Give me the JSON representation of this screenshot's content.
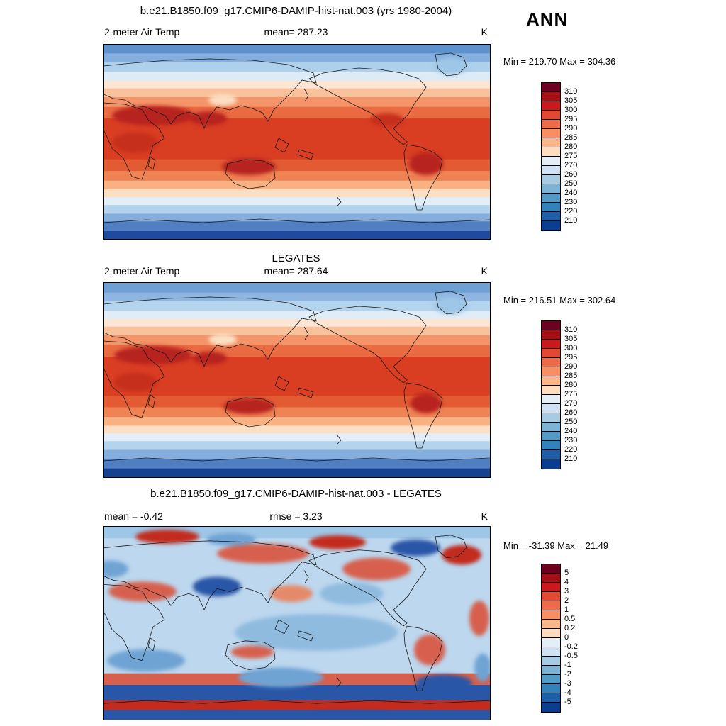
{
  "header": {
    "title": "b.e21.B1850.f09_g17.CMIP6-DAMIP-hist-nat.003 (yrs 1980-2004)",
    "season": "ANN"
  },
  "obs_label": "LEGATES",
  "diff_header": {
    "title": "b.e21.B1850.f09_g17.CMIP6-DAMIP-hist-nat.003 - LEGATES"
  },
  "chart_data": {
    "type": "heatmap",
    "panels": [
      {
        "name": "model",
        "variable": "2-meter Air Temp",
        "mean": "mean= 287.23",
        "units": "K",
        "range": "Min = 219.70 Max = 304.36",
        "stats": {
          "mean": 287.23,
          "min": 219.7,
          "max": 304.36
        },
        "colorbar": {
          "ticks": [
            "310",
            "305",
            "300",
            "295",
            "290",
            "285",
            "280",
            "275",
            "270",
            "260",
            "250",
            "240",
            "230",
            "220",
            "210"
          ],
          "colors": [
            "#6e011f",
            "#a50f15",
            "#cb181d",
            "#e24932",
            "#ef6b48",
            "#f78f63",
            "#fbb58b",
            "#fddcc0",
            "#e4eef7",
            "#cfe1f2",
            "#a6cbe3",
            "#7db3d5",
            "#539bc7",
            "#3182bd",
            "#1c5fa8",
            "#0b3d91"
          ]
        },
        "field": {
          "bands": [
            [
              0.045,
              "#5e92cc"
            ],
            [
              0.045,
              "#84aedd"
            ],
            [
              0.05,
              "#aed0ea"
            ],
            [
              0.045,
              "#dcebf6"
            ],
            [
              0.04,
              "#fbe6d5"
            ],
            [
              0.045,
              "#f9c29c"
            ],
            [
              0.05,
              "#f59468"
            ],
            [
              0.06,
              "#ea6a42"
            ],
            [
              0.21,
              "#d93d22"
            ],
            [
              0.06,
              "#e35b33"
            ],
            [
              0.05,
              "#ef8354"
            ],
            [
              0.045,
              "#f7b183"
            ],
            [
              0.04,
              "#fbdfc4"
            ],
            [
              0.04,
              "#e4eef8"
            ],
            [
              0.045,
              "#b4d3ec"
            ],
            [
              0.04,
              "#84aedd"
            ],
            [
              0.05,
              "#4f7fc0"
            ],
            [
              0.06,
              "#1f4a9e"
            ]
          ],
          "blobs": [
            [
              70,
              100,
              58,
              14,
              "#b7231f"
            ],
            [
              148,
              104,
              26,
              10,
              "#b7231f"
            ],
            [
              205,
              172,
              38,
              12,
              "#b7231f"
            ],
            [
              455,
              168,
              24,
              16,
              "#b7231f"
            ],
            [
              45,
              138,
              32,
              14,
              "#c52f1c"
            ],
            [
              400,
              106,
              24,
              9,
              "#c52f1c"
            ],
            [
              168,
              78,
              20,
              8,
              "#fbdfc4"
            ],
            [
              490,
              30,
              24,
              12,
              "#9ec6e6"
            ]
          ]
        }
      },
      {
        "name": "obs",
        "variable": "2-meter Air Temp",
        "mean": "mean= 287.64",
        "units": "K",
        "range": "Min = 216.51 Max = 302.64",
        "stats": {
          "mean": 287.64,
          "min": 216.51,
          "max": 302.64
        },
        "colorbar": {
          "ticks": [
            "310",
            "305",
            "300",
            "295",
            "290",
            "285",
            "280",
            "275",
            "270",
            "260",
            "250",
            "240",
            "230",
            "220",
            "210"
          ],
          "colors": [
            "#6e011f",
            "#a50f15",
            "#cb181d",
            "#e24932",
            "#ef6b48",
            "#f78f63",
            "#fbb58b",
            "#fddcc0",
            "#e4eef7",
            "#cfe1f2",
            "#a6cbe3",
            "#7db3d5",
            "#539bc7",
            "#3182bd",
            "#1c5fa8",
            "#0b3d91"
          ]
        },
        "field": {
          "bands": [
            [
              0.05,
              "#6fa0d4"
            ],
            [
              0.045,
              "#8fb6e0"
            ],
            [
              0.05,
              "#b4d3ec"
            ],
            [
              0.04,
              "#e0edf7"
            ],
            [
              0.04,
              "#fbe6d5"
            ],
            [
              0.045,
              "#f9c29c"
            ],
            [
              0.05,
              "#f59468"
            ],
            [
              0.06,
              "#ea6a42"
            ],
            [
              0.2,
              "#d93d22"
            ],
            [
              0.06,
              "#e35b33"
            ],
            [
              0.05,
              "#ef8354"
            ],
            [
              0.045,
              "#f7b183"
            ],
            [
              0.04,
              "#fbdfc4"
            ],
            [
              0.04,
              "#e4eef8"
            ],
            [
              0.045,
              "#b4d3ec"
            ],
            [
              0.045,
              "#84aedd"
            ],
            [
              0.05,
              "#4f7fc0"
            ],
            [
              0.06,
              "#16418f"
            ]
          ],
          "blobs": [
            [
              70,
              102,
              55,
              13,
              "#b7231f"
            ],
            [
              150,
              106,
              24,
              9,
              "#b7231f"
            ],
            [
              205,
              174,
              36,
              11,
              "#b7231f"
            ],
            [
              455,
              170,
              22,
              14,
              "#b7231f"
            ],
            [
              45,
              140,
              30,
              13,
              "#c52f1c"
            ],
            [
              168,
              80,
              20,
              8,
              "#fbdfc4"
            ],
            [
              490,
              32,
              24,
              12,
              "#9ec6e6"
            ]
          ]
        }
      },
      {
        "name": "difference",
        "mean": "mean =  -0.42",
        "rmse": "rmse =  3.23",
        "units": "K",
        "range": "Min = -31.39 Max =  21.49",
        "stats": {
          "mean": -0.42,
          "rmse": 3.23,
          "min": -31.39,
          "max": 21.49
        },
        "colorbar": {
          "ticks": [
            "5",
            "4",
            "3",
            "2",
            "1",
            "0.5",
            "0.2",
            "0",
            "-0.2",
            "-0.5",
            "-1",
            "-2",
            "-3",
            "-4",
            "-5"
          ],
          "colors": [
            "#6e011f",
            "#a50f15",
            "#cb181d",
            "#e24932",
            "#ef6b48",
            "#f78f63",
            "#fbb58b",
            "#fddcc0",
            "#e4eef7",
            "#cfe1f2",
            "#a6cbe3",
            "#7db3d5",
            "#539bc7",
            "#3182bd",
            "#1c5fa8",
            "#0b3d91"
          ]
        },
        "field": {
          "bands": [
            [
              0.06,
              "#9ec6e6"
            ],
            [
              0.7,
              "#bcd7ee"
            ],
            [
              0.06,
              "#d6604d"
            ],
            [
              0.08,
              "#2a56a8"
            ],
            [
              0.05,
              "#c22b1e"
            ],
            [
              0.05,
              "#2a56a8"
            ]
          ],
          "blobs": [
            [
              55,
              92,
              48,
              14,
              "#d6604d"
            ],
            [
              225,
              38,
              65,
              14,
              "#d6604d"
            ],
            [
              330,
              22,
              40,
              10,
              "#c22b1e"
            ],
            [
              385,
              60,
              48,
              16,
              "#d6604d"
            ],
            [
              505,
              40,
              28,
              14,
              "#c22b1e"
            ],
            [
              460,
              175,
              22,
              22,
              "#d6604d"
            ],
            [
              210,
              178,
              30,
              9,
              "#d6604d"
            ],
            [
              530,
              130,
              14,
              25,
              "#d6604d"
            ],
            [
              90,
              14,
              45,
              10,
              "#c22b1e"
            ],
            [
              160,
              85,
              34,
              14,
              "#2a56a8"
            ],
            [
              440,
              30,
              35,
              12,
              "#2a56a8"
            ],
            [
              180,
              18,
              35,
              9,
              "#6fa3d4"
            ],
            [
              300,
              150,
              115,
              26,
              "#8fbbde"
            ],
            [
              60,
              190,
              55,
              16,
              "#6fa3d4"
            ],
            [
              480,
              222,
              40,
              12,
              "#2a56a8"
            ],
            [
              250,
              214,
              60,
              14,
              "#6fa3d4"
            ],
            [
              350,
              95,
              45,
              16,
              "#8fbbde"
            ],
            [
              10,
              60,
              25,
              12,
              "#6fa3d4"
            ],
            [
              150,
              270,
              40,
              6,
              "#2a56a8"
            ],
            [
              350,
              268,
              50,
              6,
              "#2a56a8"
            ],
            [
              265,
              95,
              30,
              12,
              "#e58a68"
            ],
            [
              535,
              200,
              12,
              20,
              "#6fa3d4"
            ]
          ]
        }
      }
    ]
  }
}
